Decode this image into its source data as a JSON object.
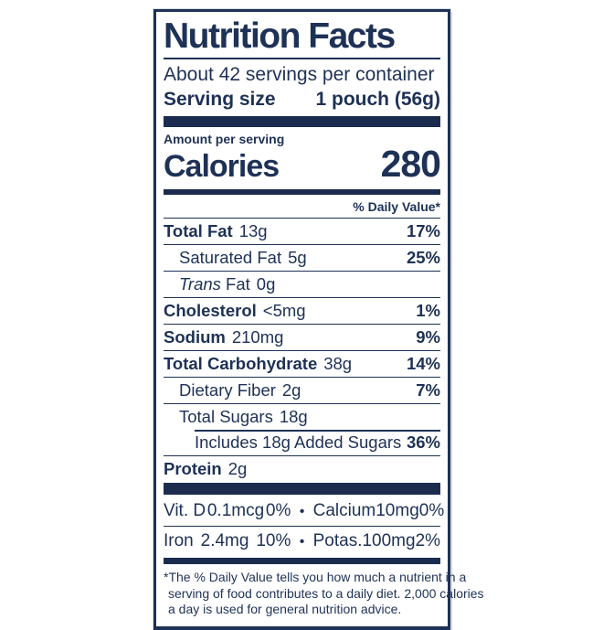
{
  "colors": {
    "navy": "#1e3156",
    "bar": "#1b2c4f"
  },
  "label": {
    "title": "Nutrition Facts",
    "servings_per_container": "About 42 servings per container",
    "serving_size_label": "Serving size",
    "serving_size_value": "1 pouch (56g)",
    "amount_per_serving": "Amount per serving",
    "calories_label": "Calories",
    "calories_value": "280",
    "daily_value_header": "% Daily Value*",
    "nutrients": [
      {
        "name": "Total Fat",
        "amount": "13g",
        "dv": "17%",
        "bold": true,
        "indent": 0,
        "divider": "full"
      },
      {
        "name": "Saturated Fat",
        "amount": "5g",
        "dv": "25%",
        "bold": false,
        "indent": 1,
        "divider": "full"
      },
      {
        "italic_prefix": "Trans",
        "name": "Fat",
        "amount": "0g",
        "dv": "",
        "bold": false,
        "indent": 1,
        "divider": "full"
      },
      {
        "name": "Cholesterol",
        "amount": "<5mg",
        "dv": "1%",
        "bold": true,
        "indent": 0,
        "divider": "full"
      },
      {
        "name": "Sodium",
        "amount": "210mg",
        "dv": "9%",
        "bold": true,
        "indent": 0,
        "divider": "full"
      },
      {
        "name": "Total Carbohydrate",
        "amount": "38g",
        "dv": "14%",
        "bold": true,
        "indent": 0,
        "divider": "full"
      },
      {
        "name": "Dietary Fiber",
        "amount": "2g",
        "dv": "7%",
        "bold": false,
        "indent": 1,
        "divider": "full"
      },
      {
        "name": "Total Sugars",
        "amount": "18g",
        "dv": "",
        "bold": false,
        "indent": 1,
        "divider": "full"
      },
      {
        "name": "Includes 18g Added Sugars",
        "amount": "",
        "dv": "36%",
        "bold": false,
        "indent": 2,
        "divider": "indent"
      },
      {
        "name": "Protein",
        "amount": "2g",
        "dv": "",
        "bold": true,
        "indent": 0,
        "divider": "full"
      }
    ],
    "micronutrients": [
      {
        "left": [
          "Vit. D",
          "0.1mcg",
          "0%"
        ],
        "bullet": "•",
        "right": [
          "Calcium",
          "10mg",
          "0%"
        ]
      },
      {
        "left": [
          "Iron",
          "2.4mg",
          "10%"
        ],
        "bullet": "•",
        "right": [
          "Potas.",
          "100mg",
          "2%"
        ]
      }
    ],
    "footnote_lines": [
      "*The % Daily Value tells you how much a nutrient in a",
      "serving of food contributes to a daily diet. 2,000 calories",
      "a day is used for general nutrition advice."
    ]
  }
}
